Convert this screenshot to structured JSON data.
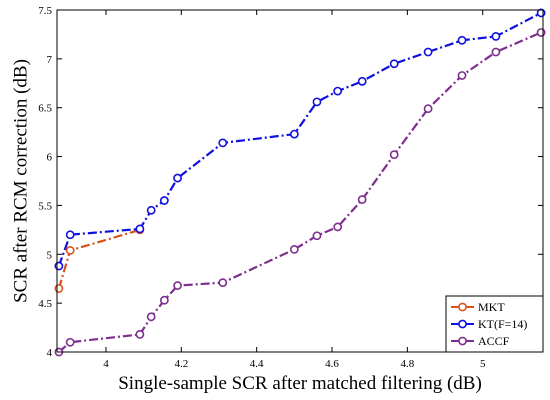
{
  "chart_data": {
    "type": "line",
    "title": "",
    "xlabel": "Single-sample SCR after matched filtering (dB)",
    "ylabel": "SCR after RCM correction (dB)",
    "xlim": [
      3.87,
      5.16
    ],
    "ylim": [
      4,
      7.5
    ],
    "xticks": [
      4,
      4.2,
      4.4,
      4.6,
      4.8,
      5
    ],
    "xtick_labels": [
      "4",
      "4.2",
      "4.4",
      "4.6",
      "4.8",
      "5"
    ],
    "yticks": [
      4,
      4.5,
      5,
      5.5,
      6,
      6.5,
      7,
      7.5
    ],
    "ytick_labels": [
      "4",
      "4.5",
      "5",
      "5.5",
      "6",
      "6.5",
      "7",
      "7.5"
    ],
    "grid": false,
    "legend_position": "bottom-right",
    "series": [
      {
        "name": "MKT",
        "color": "#d95319",
        "line_style": "dash-dot",
        "marker": "circle",
        "x": [
          3.875,
          3.905,
          4.09
        ],
        "y": [
          4.65,
          5.04,
          5.25
        ]
      },
      {
        "name": "KT(F=14)",
        "color": "#1010e0",
        "line_style": "dash-dot",
        "marker": "circle",
        "x": [
          3.875,
          3.905,
          4.09,
          4.12,
          4.155,
          4.19,
          4.31,
          4.5,
          4.56,
          4.615,
          4.68,
          4.765,
          4.855,
          4.945,
          5.035,
          5.155
        ],
        "y": [
          4.88,
          5.2,
          5.26,
          5.45,
          5.55,
          5.78,
          6.14,
          6.23,
          6.56,
          6.67,
          6.77,
          6.95,
          7.07,
          7.19,
          7.23,
          7.47
        ]
      },
      {
        "name": "ACCF",
        "color": "#7e2f8e",
        "line_style": "dash-dot",
        "marker": "circle",
        "x": [
          3.875,
          3.905,
          4.09,
          4.12,
          4.155,
          4.19,
          4.31,
          4.5,
          4.56,
          4.615,
          4.68,
          4.765,
          4.855,
          4.945,
          5.035,
          5.155
        ],
        "y": [
          4.0,
          4.1,
          4.18,
          4.36,
          4.53,
          4.68,
          4.71,
          5.05,
          5.19,
          5.28,
          5.56,
          6.02,
          6.49,
          6.83,
          7.07,
          7.27
        ]
      }
    ]
  }
}
